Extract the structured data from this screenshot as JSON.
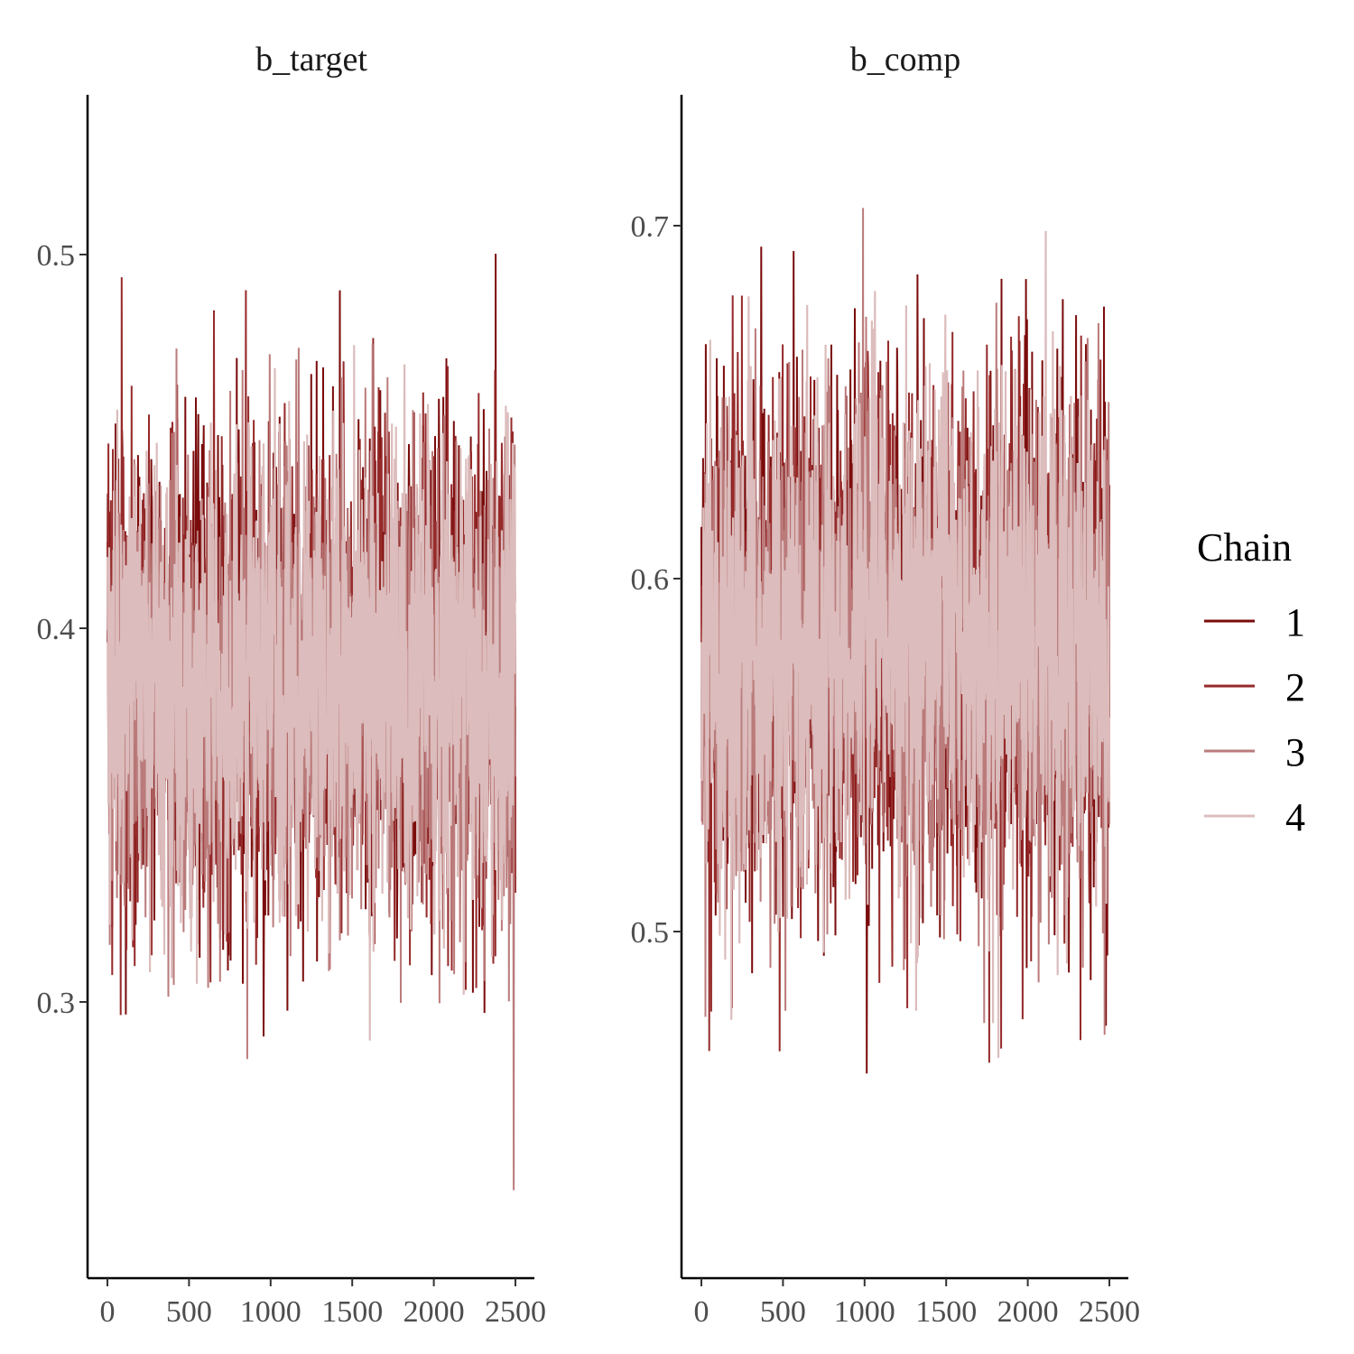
{
  "chart_data": [
    {
      "type": "line",
      "title": "b_target",
      "xlabel": "",
      "ylabel": "",
      "xlim": [
        0,
        2500
      ],
      "ylim": [
        0.22,
        0.54
      ],
      "x_ticks": [
        0,
        500,
        1000,
        1500,
        2000,
        2500
      ],
      "x_tick_labels": [
        "0",
        "500",
        "1000",
        "1500",
        "2000",
        "2500"
      ],
      "y_ticks": [
        0.3,
        0.4,
        0.5
      ],
      "y_tick_labels": [
        "0.3",
        "0.4",
        "0.5"
      ],
      "iterations": 2500,
      "series": [
        {
          "name": "1",
          "mean": 0.385,
          "sd": 0.032,
          "min": 0.223,
          "max": 0.532,
          "color": "#7b0c0c"
        },
        {
          "name": "2",
          "mean": 0.385,
          "sd": 0.032,
          "min": 0.23,
          "max": 0.52,
          "color": "#962a2a"
        },
        {
          "name": "3",
          "mean": 0.385,
          "sd": 0.031,
          "min": 0.24,
          "max": 0.515,
          "color": "#bb7b7b"
        },
        {
          "name": "4",
          "mean": 0.385,
          "sd": 0.03,
          "min": 0.233,
          "max": 0.505,
          "color": "#dcbcbc"
        }
      ]
    },
    {
      "type": "line",
      "title": "b_comp",
      "xlabel": "",
      "ylabel": "",
      "xlim": [
        0,
        2500
      ],
      "ylim": [
        0.405,
        0.74
      ],
      "x_ticks": [
        0,
        500,
        1000,
        1500,
        2000,
        2500
      ],
      "x_tick_labels": [
        "0",
        "500",
        "1000",
        "1500",
        "2000",
        "2500"
      ],
      "y_ticks": [
        0.5,
        0.6,
        0.7
      ],
      "y_tick_labels": [
        "0.5",
        "0.6",
        "0.7"
      ],
      "iterations": 2500,
      "series": [
        {
          "name": "1",
          "mean": 0.582,
          "sd": 0.036,
          "min": 0.445,
          "max": 0.72,
          "color": "#7b0c0c"
        },
        {
          "name": "2",
          "mean": 0.582,
          "sd": 0.036,
          "min": 0.42,
          "max": 0.71,
          "color": "#962a2a"
        },
        {
          "name": "3",
          "mean": 0.582,
          "sd": 0.035,
          "min": 0.45,
          "max": 0.705,
          "color": "#bb7b7b"
        },
        {
          "name": "4",
          "mean": 0.582,
          "sd": 0.034,
          "min": 0.45,
          "max": 0.72,
          "color": "#dcbcbc"
        }
      ]
    }
  ],
  "legend": {
    "title": "Chain",
    "placement": "right",
    "entries": [
      {
        "label": "1",
        "color": "#7b0c0c"
      },
      {
        "label": "2",
        "color": "#962a2a"
      },
      {
        "label": "3",
        "color": "#bb7b7b"
      },
      {
        "label": "4",
        "color": "#dcbcbc"
      }
    ]
  }
}
